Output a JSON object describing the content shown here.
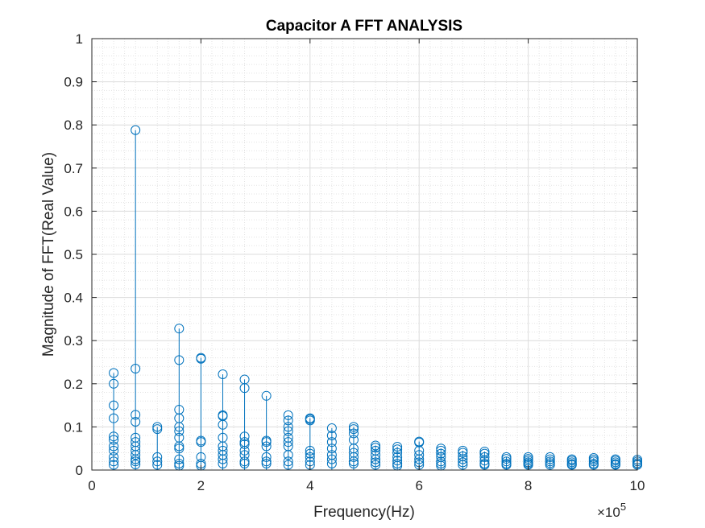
{
  "chart_data": {
    "type": "stem",
    "title": "Capacitor A FFT ANALYSIS",
    "xlabel": "Frequency(Hz)",
    "ylabel": "Magnitude of FFT(Real Value)",
    "x_exponent_label": "×10",
    "x_exponent_power": "5",
    "xlim": [
      0,
      1000000
    ],
    "ylim": [
      0,
      1
    ],
    "x_ticks": [
      0,
      200000,
      400000,
      600000,
      800000,
      1000000
    ],
    "x_tick_labels": [
      "0",
      "2",
      "4",
      "6",
      "8",
      "10"
    ],
    "y_ticks": [
      0,
      0.1,
      0.2,
      0.3,
      0.4,
      0.5,
      0.6,
      0.7,
      0.8,
      0.9,
      1
    ],
    "y_tick_labels": [
      "0",
      "0.1",
      "0.2",
      "0.3",
      "0.4",
      "0.5",
      "0.6",
      "0.7",
      "0.8",
      "0.9",
      "1"
    ],
    "grid": "major and minor",
    "color": "#0072BD",
    "marker": "open circle",
    "series": [
      {
        "x": [
          40000,
          80000,
          120000,
          160000,
          200000,
          240000,
          280000,
          320000,
          360000,
          400000,
          440000,
          480000,
          520000,
          560000,
          600000,
          640000,
          680000,
          720000,
          760000,
          800000,
          840000,
          880000,
          920000,
          960000,
          1000000
        ],
        "max_magnitude": [
          0.225,
          0.788,
          0.1,
          0.328,
          0.26,
          0.222,
          0.21,
          0.172,
          0.127,
          0.12,
          0.097,
          0.1,
          0.057,
          0.054,
          0.066,
          0.05,
          0.045,
          0.043,
          0.03,
          0.03,
          0.03,
          0.025,
          0.028,
          0.025,
          0.024
        ],
        "other_magnitudes": [
          [
            0.2,
            0.15,
            0.12,
            0.078,
            0.07,
            0.055,
            0.045,
            0.03,
            0.02,
            0.012
          ],
          [
            0.235,
            0.128,
            0.112,
            0.075,
            0.065,
            0.055,
            0.045,
            0.035,
            0.025,
            0.02,
            0.013
          ],
          [
            0.095,
            0.03,
            0.02,
            0.012
          ],
          [
            0.255,
            0.14,
            0.12,
            0.1,
            0.09,
            0.075,
            0.055,
            0.05,
            0.025,
            0.015,
            0.01
          ],
          [
            0.258,
            0.068,
            0.065,
            0.03,
            0.015,
            0.01
          ],
          [
            0.127,
            0.125,
            0.105,
            0.075,
            0.055,
            0.045,
            0.035,
            0.025,
            0.015
          ],
          [
            0.19,
            0.078,
            0.065,
            0.06,
            0.045,
            0.035,
            0.02,
            0.015
          ],
          [
            0.068,
            0.065,
            0.055,
            0.03,
            0.02,
            0.015
          ],
          [
            0.115,
            0.1,
            0.09,
            0.075,
            0.065,
            0.055,
            0.035,
            0.02,
            0.012
          ],
          [
            0.118,
            0.115,
            0.045,
            0.038,
            0.03,
            0.02,
            0.012
          ],
          [
            0.08,
            0.065,
            0.05,
            0.035,
            0.025,
            0.015
          ],
          [
            0.095,
            0.085,
            0.07,
            0.05,
            0.04,
            0.03,
            0.02,
            0.015
          ],
          [
            0.052,
            0.045,
            0.035,
            0.025,
            0.018,
            0.012
          ],
          [
            0.048,
            0.04,
            0.03,
            0.022,
            0.015,
            0.01
          ],
          [
            0.064,
            0.045,
            0.035,
            0.025,
            0.018,
            0.012
          ],
          [
            0.045,
            0.038,
            0.03,
            0.02,
            0.015,
            0.01
          ],
          [
            0.04,
            0.032,
            0.025,
            0.018,
            0.012
          ],
          [
            0.038,
            0.03,
            0.022,
            0.015,
            0.012
          ],
          [
            0.026,
            0.02,
            0.015,
            0.012
          ],
          [
            0.026,
            0.022,
            0.018,
            0.015,
            0.012
          ],
          [
            0.025,
            0.02,
            0.016,
            0.012
          ],
          [
            0.022,
            0.018,
            0.014,
            0.012
          ],
          [
            0.024,
            0.02,
            0.015,
            0.012
          ],
          [
            0.022,
            0.018,
            0.014,
            0.012
          ],
          [
            0.02,
            0.016,
            0.013,
            0.012
          ]
        ]
      }
    ]
  }
}
